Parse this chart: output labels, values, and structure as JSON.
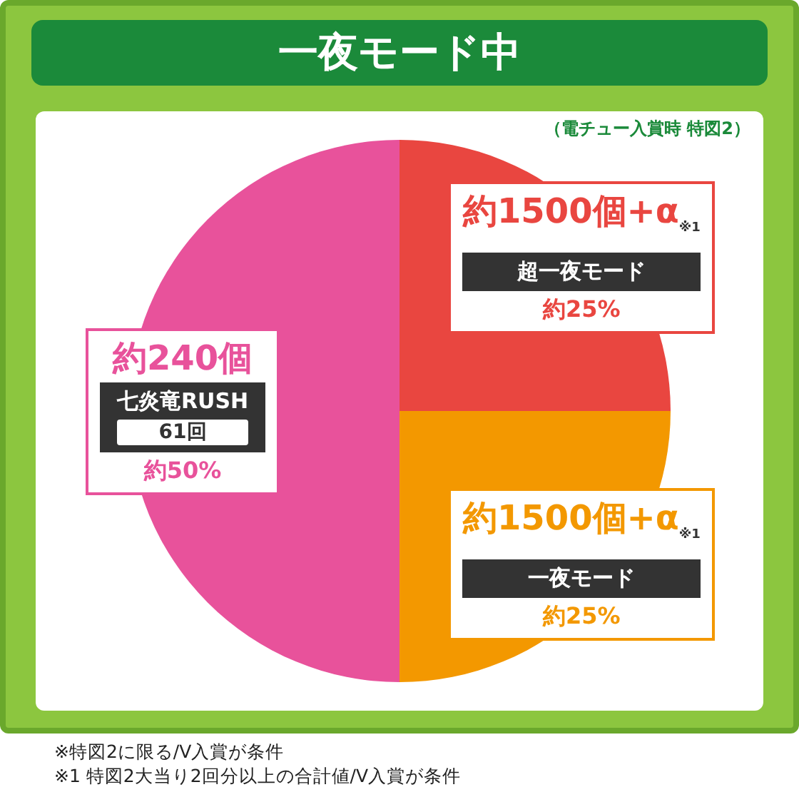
{
  "chart_data": {
    "type": "pie",
    "title": "一夜モード中",
    "subtitle": "（電チュー入賞時 特図2）",
    "categories": [
      "超一夜モード",
      "一夜モード",
      "七炎竜RUSH"
    ],
    "values": [
      25,
      25,
      50
    ],
    "colors": [
      "#e94640",
      "#f39800",
      "#e8529b"
    ],
    "value_labels": [
      "約25%",
      "約25%",
      "約50%"
    ],
    "annotations": [
      "約1500個+α$_{※1}$",
      "約1500個+α$_{※1}$",
      "約240個",
      "61回",
      "※特図2に限る/V入賞が条件",
      "※1 特図2大当り2回分以上の合計値/V入賞が条件"
    ],
    "legend": false
  }
}
